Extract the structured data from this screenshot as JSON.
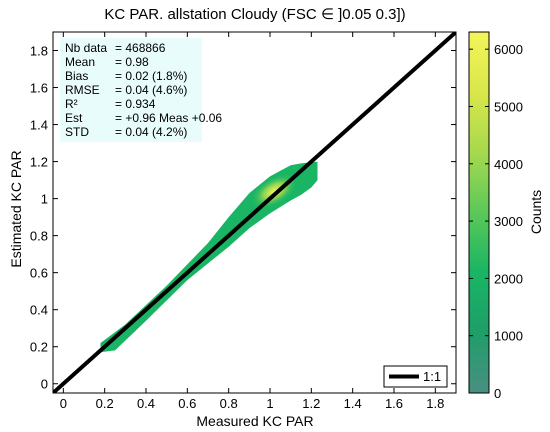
{
  "chart_data": {
    "type": "heatmap",
    "title": "KC PAR. allstation  Cloudy (FSC ∈ ]0.05 0.3])",
    "xlabel": "Measured KC PAR",
    "ylabel": "Estimated KC PAR",
    "xlim": [
      -0.05,
      1.9
    ],
    "ylim": [
      -0.05,
      1.9
    ],
    "x_ticks": [
      "0",
      "0.2",
      "0.4",
      "0.6",
      "0.8",
      "1",
      "1.2",
      "1.4",
      "1.6",
      "1.8"
    ],
    "y_ticks": [
      "0",
      "0.2",
      "0.4",
      "0.6",
      "0.8",
      "1",
      "1.2",
      "1.4",
      "1.6",
      "1.8"
    ],
    "grid": false,
    "density_region": {
      "upper_edge": [
        [
          0.18,
          0.22
        ],
        [
          0.3,
          0.32
        ],
        [
          0.5,
          0.53
        ],
        [
          0.7,
          0.76
        ],
        [
          0.8,
          0.9
        ],
        [
          0.9,
          1.03
        ],
        [
          1.0,
          1.12
        ],
        [
          1.05,
          1.15
        ],
        [
          1.1,
          1.18
        ],
        [
          1.15,
          1.19
        ],
        [
          1.23,
          1.2
        ]
      ],
      "lower_edge": [
        [
          1.23,
          1.1
        ],
        [
          1.2,
          1.06
        ],
        [
          1.15,
          1.02
        ],
        [
          1.1,
          0.99
        ],
        [
          1.0,
          0.92
        ],
        [
          0.9,
          0.84
        ],
        [
          0.8,
          0.74
        ],
        [
          0.6,
          0.56
        ],
        [
          0.4,
          0.34
        ],
        [
          0.25,
          0.18
        ],
        [
          0.18,
          0.17
        ]
      ],
      "peak": [
        1.02,
        1.04
      ]
    },
    "colorbar": {
      "label": "Counts",
      "range": [
        0,
        6300
      ],
      "ticks": [
        "0",
        "1000",
        "2000",
        "3000",
        "4000",
        "5000",
        "6000"
      ],
      "colors": [
        "#4a8f82",
        "#1f9e68",
        "#19b564",
        "#5cc85a",
        "#a6d94e",
        "#d8e74a",
        "#f5f55a"
      ]
    },
    "reference_line": {
      "label": "1:1",
      "from": [
        -0.05,
        -0.05
      ],
      "to": [
        1.9,
        1.9
      ],
      "color": "#000000"
    },
    "legend_position": "bottom-right",
    "stats": {
      "background": "#e8fcfc",
      "rows": [
        {
          "key": "Nb data",
          "value": "= 468866"
        },
        {
          "key": "Mean",
          "value": "=  0.98"
        },
        {
          "key": "Bias",
          "value": "=  0.02 (1.8%)"
        },
        {
          "key": "RMSE",
          "value": "=  0.04 (4.6%)"
        },
        {
          "key": "R²",
          "value": "=  0.934"
        },
        {
          "key": "Est",
          "value": "= +0.96 Meas +0.06"
        },
        {
          "key": "STD",
          "value": "=  0.04 (4.2%)"
        }
      ]
    }
  }
}
